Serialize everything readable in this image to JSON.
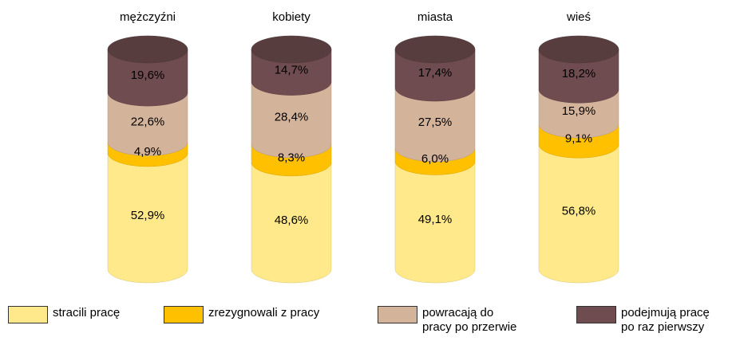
{
  "chart_data": {
    "type": "stacked-cylinder",
    "categories": [
      "mężczyźni",
      "kobiety",
      "miasta",
      "wieś"
    ],
    "series": [
      {
        "name": "stracili pracę",
        "color": "#ffe98a",
        "values": [
          52.9,
          48.6,
          49.1,
          56.8
        ],
        "value_labels": [
          "52,9%",
          "48,6%",
          "49,1%",
          "56,8%"
        ]
      },
      {
        "name": "zrezygnowali z pracy",
        "color": "#ffc000",
        "values": [
          4.9,
          8.3,
          6.0,
          9.1
        ],
        "value_labels": [
          "4,9%",
          "8,3%",
          "6,0%",
          "9,1%"
        ]
      },
      {
        "name": "powracają do pracy po przerwie",
        "color": "#d4b39b",
        "values": [
          22.6,
          28.4,
          27.5,
          15.9
        ],
        "value_labels": [
          "22,6%",
          "28,4%",
          "27,5%",
          "15,9%"
        ]
      },
      {
        "name": "podejmują pracę po raz pierwszy",
        "color": "#6e4c4f",
        "values": [
          19.6,
          14.7,
          17.4,
          18.2
        ],
        "value_labels": [
          "19,6%",
          "14,7%",
          "17,4%",
          "18,2%"
        ]
      }
    ]
  }
}
